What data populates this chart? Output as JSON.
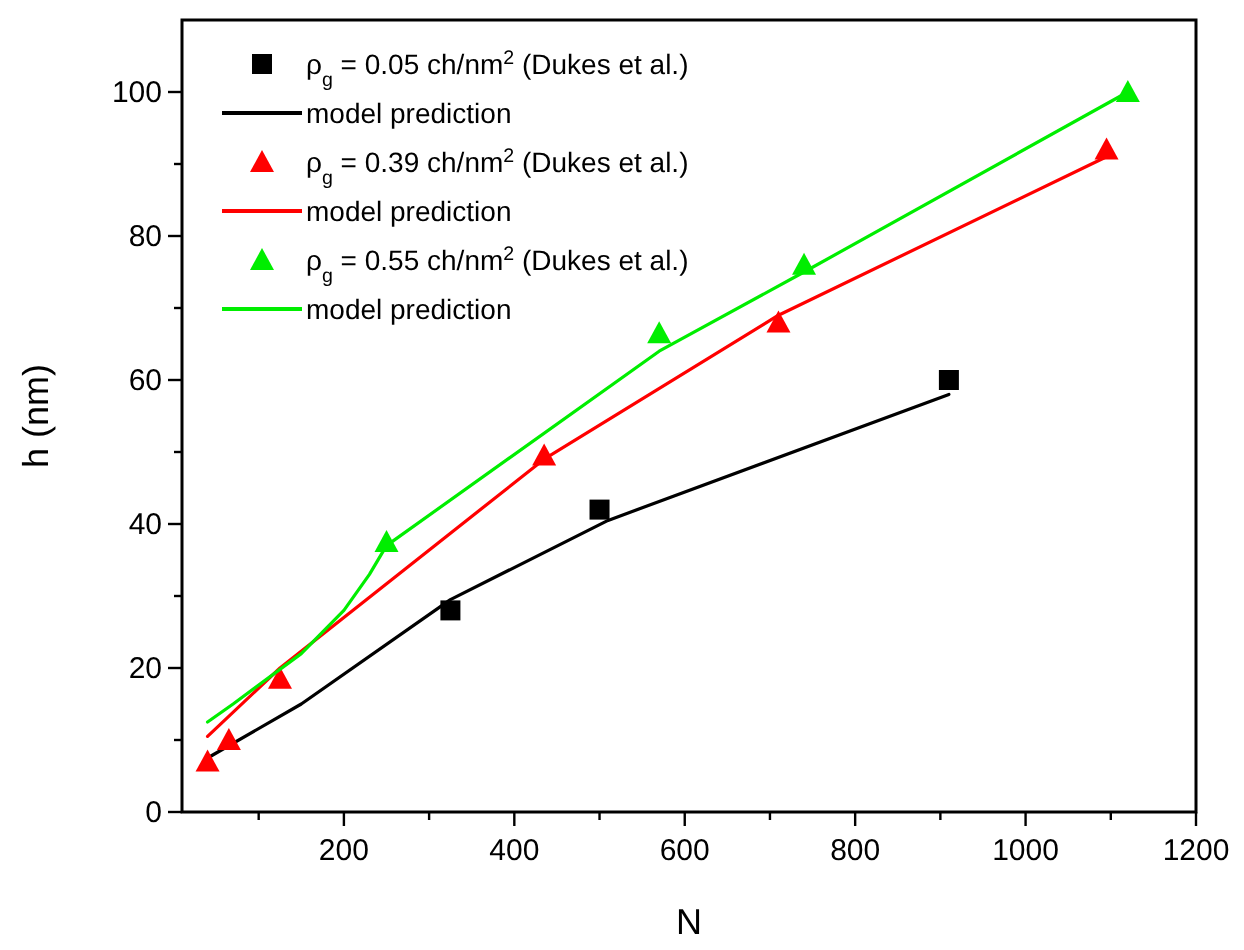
{
  "chart_data": {
    "type": "scatter",
    "xlabel": "N",
    "ylabel": "h (nm)",
    "xlim": [
      10,
      1200
    ],
    "ylim": [
      0,
      110
    ],
    "xticks": [
      {
        "value": 100,
        "label": null
      },
      200,
      {
        "value": 300,
        "label": null
      },
      400,
      {
        "value": 500,
        "label": null
      },
      600,
      {
        "value": 700,
        "label": null
      },
      800,
      {
        "value": 900,
        "label": null
      },
      1000,
      {
        "value": 1100,
        "label": null
      },
      1200
    ],
    "yticks": [
      0,
      {
        "value": 10,
        "label": null
      },
      20,
      {
        "value": 30,
        "label": null
      },
      40,
      {
        "value": 50,
        "label": null
      },
      60,
      {
        "value": 70,
        "label": null
      },
      80,
      {
        "value": 90,
        "label": null
      },
      100
    ],
    "grid": false,
    "legend": "top left",
    "series": [
      {
        "name": "ρ$_{g}$ = 0.05 ch/nm$^{2}$ (Dukes et al.)",
        "marker": "square",
        "color": "#000000",
        "x": [
          325,
          500,
          910
        ],
        "values": [
          28,
          42,
          60
        ]
      },
      {
        "name": "model prediction",
        "type": "line",
        "marker": "none",
        "color": "#000000",
        "x": [
          40,
          150,
          325,
          510,
          910
        ],
        "values": [
          7.5,
          15,
          29.5,
          40.5,
          58
        ]
      },
      {
        "name": "ρ$_{g}$ = 0.39 ch/nm$^{2}$ (Dukes et al.)",
        "marker": "triangle",
        "color": "#ff0000",
        "x": [
          40,
          65,
          125,
          435,
          710,
          1095
        ],
        "values": [
          7,
          10,
          18.5,
          49.5,
          68,
          92
        ]
      },
      {
        "name": "model prediction",
        "type": "line",
        "marker": "none",
        "color": "#ff0000",
        "x": [
          40,
          125,
          435,
          710,
          1095
        ],
        "values": [
          10.5,
          20,
          49,
          69,
          91
        ]
      },
      {
        "name": "ρ$_{g}$ = 0.55 ch/nm$^{2}$ (Dukes et al.)",
        "marker": "triangle",
        "color": "#00ee00",
        "x": [
          250,
          570,
          740,
          1120
        ],
        "values": [
          37.5,
          66.5,
          76,
          100
        ]
      },
      {
        "name": "model prediction",
        "type": "line",
        "marker": "none",
        "color": "#00ee00",
        "x": [
          40,
          70,
          150,
          200,
          230,
          250,
          570,
          740,
          1120
        ],
        "values": [
          12.5,
          15,
          22,
          28,
          33,
          37,
          64,
          75,
          100
        ]
      }
    ]
  }
}
